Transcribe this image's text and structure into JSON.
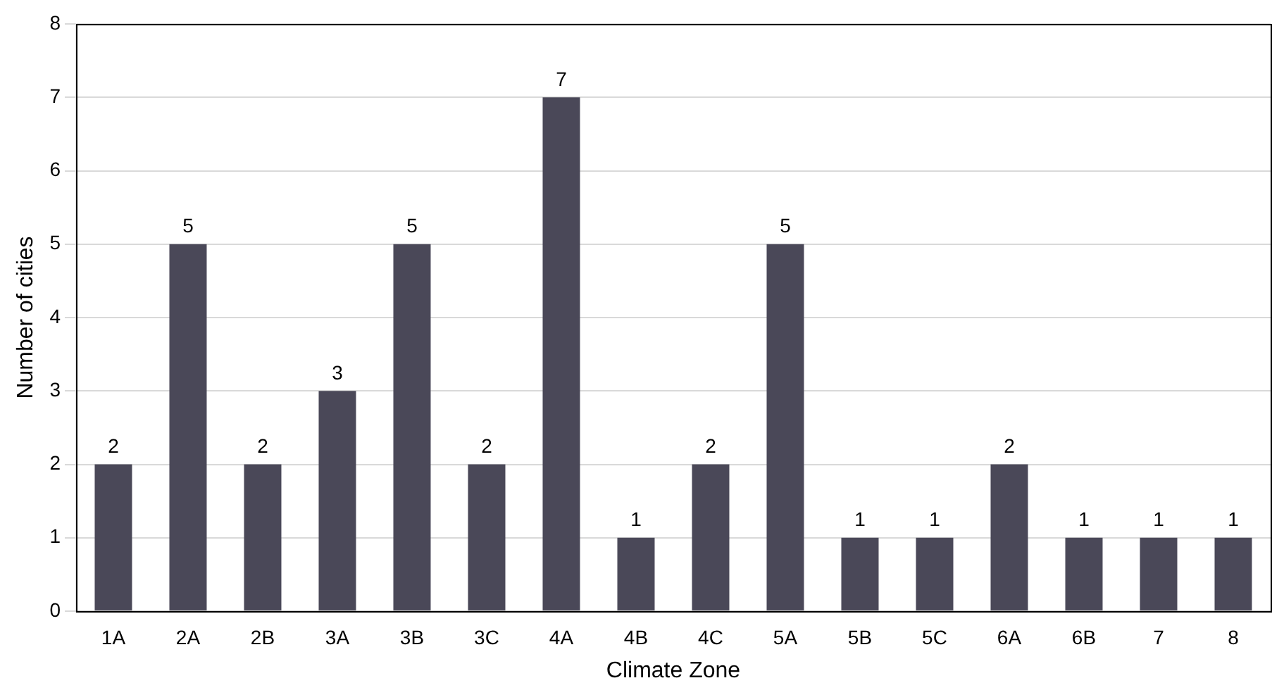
{
  "chart_data": {
    "type": "bar",
    "xlabel": "Climate Zone",
    "ylabel": "Number of cities",
    "categories": [
      "1A",
      "2A",
      "2B",
      "3A",
      "3B",
      "3C",
      "4A",
      "4B",
      "4C",
      "5A",
      "5B",
      "5C",
      "6A",
      "6B",
      "7",
      "8"
    ],
    "values": [
      2,
      5,
      2,
      3,
      5,
      2,
      7,
      1,
      2,
      5,
      1,
      1,
      2,
      1,
      1,
      1
    ],
    "color": "#4a4858",
    "ylim": [
      0,
      8
    ],
    "yticks": [
      0,
      1,
      2,
      3,
      4,
      5,
      6,
      7,
      8
    ],
    "grid": "y",
    "data_labels": true,
    "legend": false
  }
}
